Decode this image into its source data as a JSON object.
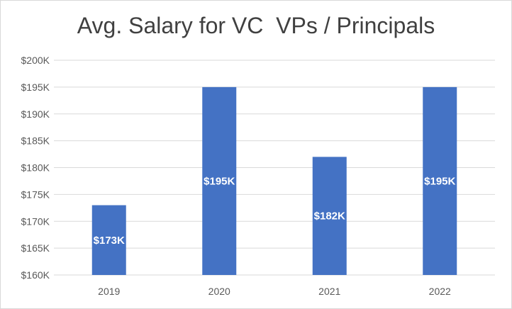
{
  "chart_data": {
    "type": "bar",
    "title": "Avg. Salary for VC  VPs / Principals",
    "categories": [
      "2019",
      "2020",
      "2021",
      "2022"
    ],
    "values": [
      173,
      195,
      182,
      195
    ],
    "data_labels": [
      "$173K",
      "$195K",
      "$182K",
      "$195K"
    ],
    "y_ticks": [
      "$160K",
      "$165K",
      "$170K",
      "$175K",
      "$180K",
      "$185K",
      "$190K",
      "$195K",
      "$200K"
    ],
    "ylim": [
      160,
      200
    ],
    "y_unit": "thousand USD",
    "grid": true,
    "legend": "none",
    "bar_color": "#4472C4",
    "grid_color": "#d9d9d9"
  }
}
